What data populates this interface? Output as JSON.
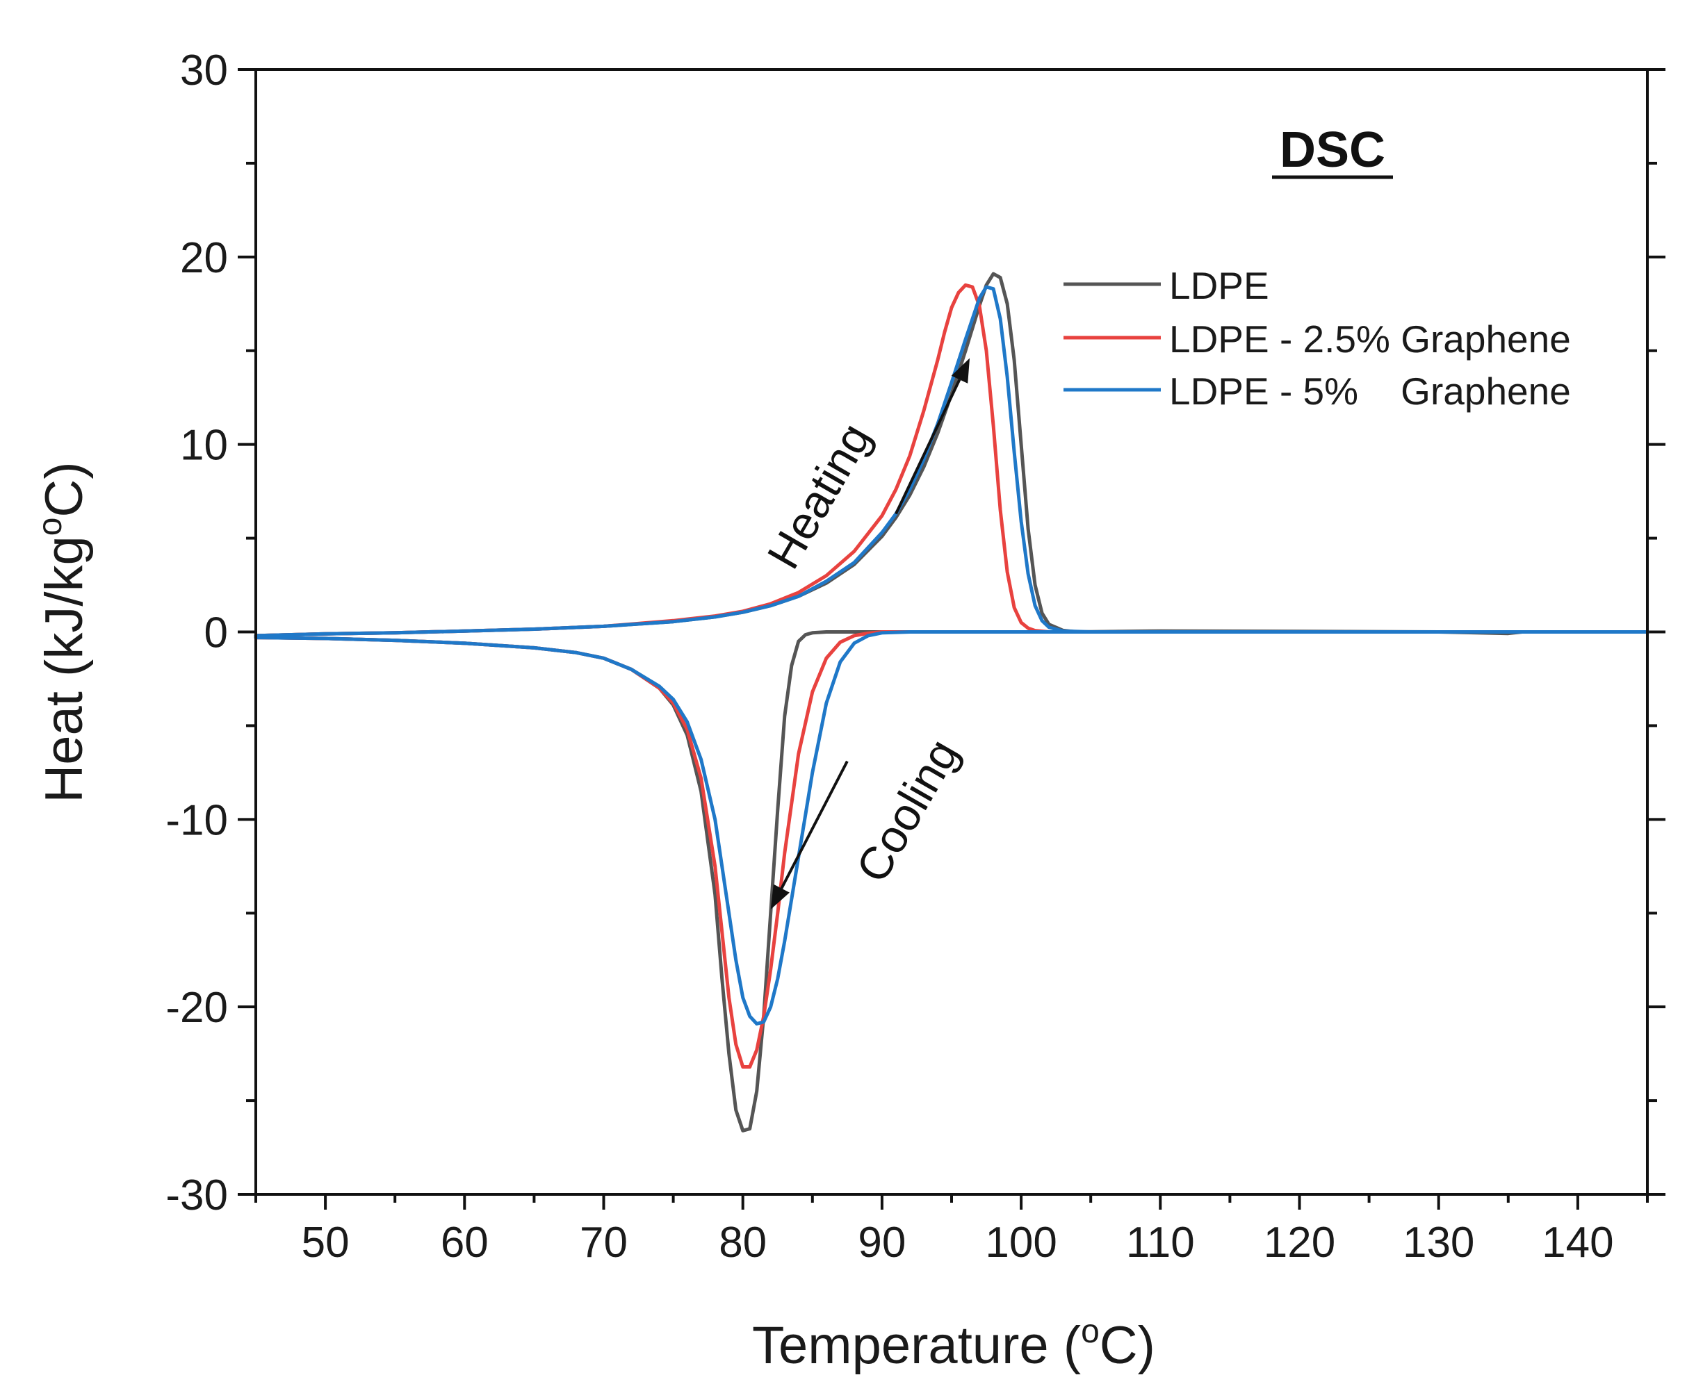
{
  "chart_data": {
    "type": "line",
    "title": "DSC",
    "xlabel": "Temperature (°C)",
    "xlabel_main": "Temperature (",
    "xlabel_sup": "o",
    "xlabel_end": "C)",
    "ylabel": "Heat (kJ/kg°C)",
    "ylabel_main": "Heat (kJ/kg",
    "ylabel_sup": "o",
    "ylabel_end": "C)",
    "xlim": [
      45,
      145
    ],
    "ylim": [
      -30,
      30
    ],
    "xticks": [
      50,
      60,
      70,
      80,
      90,
      100,
      110,
      120,
      130,
      140
    ],
    "yticks": [
      -30,
      -20,
      -10,
      0,
      10,
      20,
      30
    ],
    "legend_position": "top-right",
    "annotations": [
      {
        "text": "Heating",
        "arrow_from": [
          91.0,
          6.3
        ],
        "arrow_to": [
          96.3,
          14.6
        ]
      },
      {
        "text": "Cooling",
        "arrow_from": [
          87.5,
          -6.9
        ],
        "arrow_to": [
          82.0,
          -14.8
        ]
      }
    ],
    "series": [
      {
        "name": "LDPE",
        "color": "#555555",
        "heating": {
          "x": [
            45,
            50,
            55,
            60,
            65,
            70,
            75,
            78,
            80,
            82,
            84,
            86,
            88,
            90,
            91,
            92,
            93,
            94,
            95,
            96,
            96.5,
            97,
            97.5,
            98,
            98.5,
            99,
            99.5,
            100,
            100.5,
            101,
            101.5,
            102,
            103,
            104,
            110,
            120,
            130,
            135,
            136,
            140,
            145
          ],
          "y": [
            -0.2,
            -0.1,
            -0.05,
            0.05,
            0.15,
            0.3,
            0.55,
            0.8,
            1.05,
            1.4,
            1.9,
            2.6,
            3.6,
            5.1,
            6.1,
            7.3,
            8.8,
            10.6,
            12.7,
            15.0,
            16.2,
            17.4,
            18.5,
            19.1,
            18.9,
            17.5,
            14.5,
            10.0,
            5.5,
            2.5,
            1.0,
            0.4,
            0.08,
            0.0,
            0.05,
            0.03,
            0.0,
            -0.08,
            0.0,
            0.0,
            0.0
          ]
        },
        "cooling": {
          "x": [
            45,
            50,
            55,
            60,
            65,
            68,
            70,
            72,
            74,
            75,
            76,
            77,
            78,
            78.5,
            79,
            79.5,
            80,
            80.5,
            81,
            81.5,
            82,
            82.5,
            83,
            83.5,
            84,
            84.5,
            85,
            86,
            88,
            90,
            95,
            100,
            110,
            120,
            130,
            140,
            145
          ],
          "y": [
            -0.3,
            -0.35,
            -0.45,
            -0.6,
            -0.85,
            -1.1,
            -1.4,
            -2.0,
            -3.0,
            -3.9,
            -5.5,
            -8.5,
            -14.0,
            -18.5,
            -22.5,
            -25.5,
            -26.6,
            -26.5,
            -24.5,
            -20.5,
            -15.0,
            -9.5,
            -4.5,
            -1.8,
            -0.5,
            -0.15,
            -0.05,
            0.0,
            0.0,
            0.0,
            0.0,
            0.0,
            0.0,
            0.0,
            0.0,
            0.0,
            0.0
          ]
        }
      },
      {
        "name": "LDPE - 2.5% Graphene",
        "color": "#e8423f",
        "heating": {
          "x": [
            45,
            50,
            55,
            60,
            65,
            70,
            75,
            78,
            80,
            82,
            84,
            86,
            88,
            90,
            91,
            92,
            93,
            94,
            94.5,
            95,
            95.5,
            96,
            96.5,
            97,
            97.5,
            98,
            98.5,
            99,
            99.5,
            100,
            100.5,
            101,
            102,
            105,
            110,
            120,
            130,
            140,
            145
          ],
          "y": [
            -0.2,
            -0.1,
            -0.05,
            0.05,
            0.15,
            0.3,
            0.6,
            0.85,
            1.1,
            1.5,
            2.1,
            3.0,
            4.3,
            6.2,
            7.6,
            9.4,
            11.8,
            14.5,
            16.0,
            17.3,
            18.1,
            18.5,
            18.4,
            17.4,
            15.0,
            11.0,
            6.5,
            3.2,
            1.3,
            0.5,
            0.2,
            0.07,
            0.0,
            0.0,
            0.0,
            0.0,
            0.0,
            0.0,
            0.0
          ]
        },
        "cooling": {
          "x": [
            45,
            50,
            55,
            60,
            65,
            68,
            70,
            72,
            74,
            75,
            76,
            77,
            78,
            78.5,
            79,
            79.5,
            80,
            80.5,
            81,
            81.5,
            82,
            82.5,
            83,
            84,
            85,
            86,
            87,
            88,
            89,
            90,
            92,
            95,
            100,
            110,
            120,
            130,
            140,
            145
          ],
          "y": [
            -0.3,
            -0.35,
            -0.45,
            -0.6,
            -0.85,
            -1.1,
            -1.4,
            -2.0,
            -3.0,
            -3.8,
            -5.2,
            -7.8,
            -12.5,
            -16.0,
            -19.5,
            -22.0,
            -23.2,
            -23.2,
            -22.3,
            -20.5,
            -18.0,
            -15.0,
            -11.8,
            -6.5,
            -3.2,
            -1.4,
            -0.55,
            -0.2,
            -0.07,
            0.0,
            0.0,
            0.0,
            0.0,
            0.0,
            0.0,
            0.0,
            0.0,
            0.0
          ]
        }
      },
      {
        "name": "LDPE - 5%    Graphene",
        "color": "#1f78c8",
        "heating": {
          "x": [
            45,
            50,
            55,
            60,
            65,
            70,
            75,
            78,
            80,
            82,
            84,
            86,
            88,
            90,
            91,
            92,
            93,
            94,
            95,
            96,
            96.5,
            97,
            97.5,
            98,
            98.5,
            99,
            99.5,
            100,
            100.5,
            101,
            101.5,
            102,
            103,
            105,
            110,
            120,
            130,
            140,
            145
          ],
          "y": [
            -0.2,
            -0.1,
            -0.05,
            0.05,
            0.15,
            0.3,
            0.55,
            0.8,
            1.05,
            1.4,
            1.9,
            2.7,
            3.7,
            5.3,
            6.3,
            7.6,
            9.2,
            11.1,
            13.3,
            15.6,
            16.7,
            17.8,
            18.4,
            18.3,
            16.7,
            13.6,
            9.6,
            5.9,
            3.1,
            1.4,
            0.6,
            0.25,
            0.05,
            0.0,
            0.0,
            0.0,
            0.0,
            0.0,
            0.0
          ]
        },
        "cooling": {
          "x": [
            45,
            50,
            55,
            60,
            65,
            68,
            70,
            72,
            74,
            75,
            76,
            77,
            78,
            78.5,
            79,
            79.5,
            80,
            80.5,
            81,
            81.5,
            82,
            82.5,
            83,
            84,
            85,
            86,
            87,
            88,
            89,
            90,
            92,
            95,
            100,
            110,
            120,
            130,
            140,
            145
          ],
          "y": [
            -0.3,
            -0.35,
            -0.45,
            -0.6,
            -0.85,
            -1.1,
            -1.4,
            -2.0,
            -2.9,
            -3.6,
            -4.8,
            -6.8,
            -10.0,
            -12.5,
            -15.0,
            -17.5,
            -19.5,
            -20.5,
            -20.9,
            -20.8,
            -20.0,
            -18.5,
            -16.5,
            -12.0,
            -7.5,
            -3.8,
            -1.6,
            -0.6,
            -0.2,
            -0.05,
            0.0,
            0.0,
            0.0,
            0.0,
            0.0,
            0.0,
            0.0,
            0.0
          ]
        }
      }
    ]
  }
}
